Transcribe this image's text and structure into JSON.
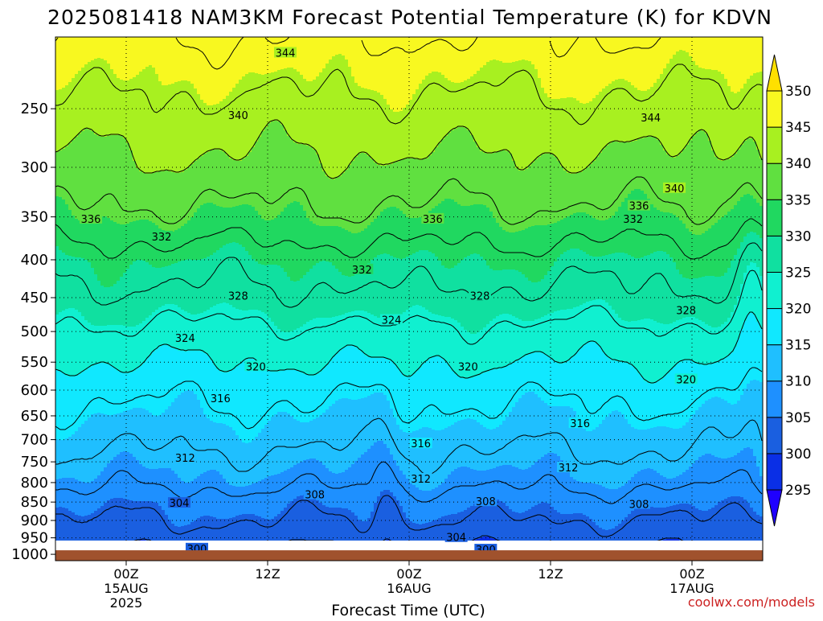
{
  "chart_data": {
    "type": "heatmap",
    "title": "2025081418 NAM3KM Forecast Potential Temperature (K) for KDVN",
    "xlabel": "Forecast Time (UTC)",
    "ylabel": "",
    "credit": "coolwx.com/models",
    "x_ticks": [
      {
        "label": [
          "00Z",
          "15AUG",
          "2025"
        ],
        "hour": 6
      },
      {
        "label": [
          "12Z"
        ],
        "hour": 18
      },
      {
        "label": [
          "00Z",
          "16AUG"
        ],
        "hour": 30
      },
      {
        "label": [
          "12Z"
        ],
        "hour": 42
      },
      {
        "label": [
          "00Z",
          "17AUG"
        ],
        "hour": 54
      }
    ],
    "xlim_forecast_hours": [
      0,
      60
    ],
    "y_scale": "log-pressure",
    "y_ticks_hpa": [
      250,
      300,
      350,
      400,
      450,
      500,
      550,
      600,
      650,
      700,
      750,
      800,
      850,
      900,
      950,
      1000
    ],
    "ylim_hpa": [
      1020,
      200
    ],
    "grid": true,
    "ground": {
      "color": "#a0522d",
      "top_hpa": 1000
    },
    "colorbar": {
      "levels": [
        295,
        300,
        305,
        310,
        315,
        320,
        325,
        330,
        335,
        340,
        345,
        350
      ],
      "colors": [
        "#1f00ff",
        "#0a2fe6",
        "#1a5fe0",
        "#1e90ff",
        "#1fbfff",
        "#10e8ff",
        "#10f0d0",
        "#10e0a0",
        "#20d860",
        "#60e040",
        "#a8f020",
        "#f8f820",
        "#ffe000"
      ],
      "placement": "right"
    },
    "contour_interval": 4,
    "contour_labels": [
      {
        "v": 344,
        "h": 19.5,
        "p": 210
      },
      {
        "v": 344,
        "h": 50.5,
        "p": 257
      },
      {
        "v": 340,
        "h": 15.5,
        "p": 255
      },
      {
        "v": 340,
        "h": 52.5,
        "p": 320
      },
      {
        "v": 336,
        "h": 3.0,
        "p": 352
      },
      {
        "v": 336,
        "h": 32.0,
        "p": 352
      },
      {
        "v": 336,
        "h": 49.5,
        "p": 338
      },
      {
        "v": 332,
        "h": 9.0,
        "p": 372
      },
      {
        "v": 332,
        "h": 26.0,
        "p": 412
      },
      {
        "v": 332,
        "h": 49.0,
        "p": 352
      },
      {
        "v": 328,
        "h": 15.5,
        "p": 447
      },
      {
        "v": 328,
        "h": 36.0,
        "p": 447
      },
      {
        "v": 328,
        "h": 53.5,
        "p": 468
      },
      {
        "v": 324,
        "h": 11.0,
        "p": 510
      },
      {
        "v": 324,
        "h": 28.5,
        "p": 482
      },
      {
        "v": 320,
        "h": 17.0,
        "p": 557
      },
      {
        "v": 320,
        "h": 35.0,
        "p": 557
      },
      {
        "v": 320,
        "h": 53.5,
        "p": 580
      },
      {
        "v": 316,
        "h": 14.0,
        "p": 615
      },
      {
        "v": 316,
        "h": 31.0,
        "p": 708
      },
      {
        "v": 316,
        "h": 44.5,
        "p": 665
      },
      {
        "v": 312,
        "h": 11.0,
        "p": 740
      },
      {
        "v": 312,
        "h": 31.0,
        "p": 790
      },
      {
        "v": 312,
        "h": 43.5,
        "p": 763
      },
      {
        "v": 308,
        "h": 22.0,
        "p": 830
      },
      {
        "v": 308,
        "h": 36.5,
        "p": 848
      },
      {
        "v": 308,
        "h": 49.5,
        "p": 855
      },
      {
        "v": 304,
        "h": 10.5,
        "p": 852
      },
      {
        "v": 304,
        "h": 34.0,
        "p": 948
      },
      {
        "v": 300,
        "h": 12.0,
        "p": 982
      },
      {
        "v": 300,
        "h": 36.5,
        "p": 985
      }
    ],
    "profile_theta_at_pressure": [
      {
        "p": 1000,
        "theta": 298
      },
      {
        "p": 950,
        "theta": 302
      },
      {
        "p": 900,
        "theta": 304
      },
      {
        "p": 850,
        "theta": 306
      },
      {
        "p": 800,
        "theta": 309
      },
      {
        "p": 750,
        "theta": 311
      },
      {
        "p": 700,
        "theta": 313
      },
      {
        "p": 650,
        "theta": 315
      },
      {
        "p": 600,
        "theta": 317
      },
      {
        "p": 550,
        "theta": 320
      },
      {
        "p": 500,
        "theta": 323
      },
      {
        "p": 450,
        "theta": 327
      },
      {
        "p": 400,
        "theta": 330
      },
      {
        "p": 350,
        "theta": 335
      },
      {
        "p": 300,
        "theta": 339
      },
      {
        "p": 250,
        "theta": 343
      },
      {
        "p": 200,
        "theta": 348
      }
    ]
  }
}
